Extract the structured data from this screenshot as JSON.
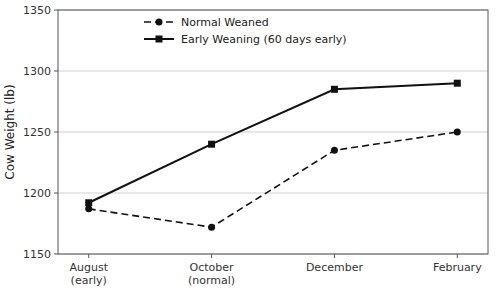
{
  "chart_data": {
    "type": "line",
    "categories": [
      "August\n(early)",
      "October\n(normal)",
      "December",
      "February"
    ],
    "ylabel": "Cow Weight (lb)",
    "series": [
      {
        "name": "Normal Weaned",
        "color": "#111111",
        "line_style": "dashed",
        "marker": "circle",
        "values": [
          1187,
          1172,
          1235,
          1250
        ]
      },
      {
        "name": "Early Weaning (60 days early)",
        "color": "#111111",
        "line_style": "solid",
        "marker": "square",
        "values": [
          1192,
          1240,
          1285,
          1290
        ]
      }
    ],
    "ylim": [
      1150,
      1350
    ],
    "yticks": [
      1150,
      1200,
      1250,
      1300,
      1350
    ],
    "grid": true,
    "legend": "upper left"
  }
}
